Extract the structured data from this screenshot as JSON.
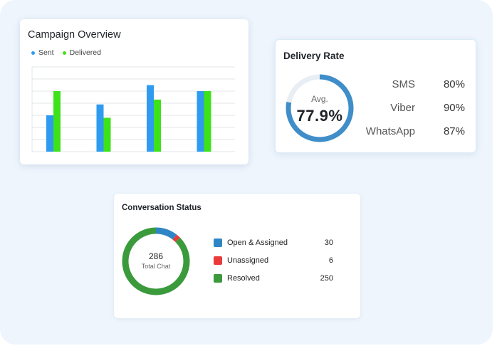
{
  "campaign": {
    "title": "Campaign Overview",
    "legend": [
      {
        "label": "Sent",
        "color": "#2f9bf0"
      },
      {
        "label": "Delivered",
        "color": "#3ee218"
      }
    ],
    "chart_data": {
      "type": "bar",
      "categories": [
        "",
        "",
        "",
        ""
      ],
      "series": [
        {
          "name": "Sent",
          "values": [
            3,
            3.9,
            5.5,
            5
          ],
          "color": "#2f9bf0"
        },
        {
          "name": "Delivered",
          "values": [
            5,
            2.8,
            4.3,
            5
          ],
          "color": "#3ee218"
        }
      ],
      "ylim": [
        0,
        7
      ],
      "gridlines": 8,
      "grid": true
    }
  },
  "delivery": {
    "title": "Delivery Rate",
    "avg_label": "Avg.",
    "avg_value": "77.9%",
    "avg_fraction": 0.779,
    "ring_color": "#3f8ec9",
    "track_color": "#e8eef3",
    "channels": [
      {
        "name": "SMS",
        "value": "80%"
      },
      {
        "name": "Viber",
        "value": "90%"
      },
      {
        "name": "WhatsApp",
        "value": "87%"
      }
    ]
  },
  "conversation": {
    "title": "Conversation Status",
    "total": "286",
    "total_label": "Total Chat",
    "statuses": [
      {
        "name": "Open & Assigned",
        "count": "30",
        "value": 30,
        "color": "#2f86c4"
      },
      {
        "name": "Unassigned",
        "count": "6",
        "value": 6,
        "color": "#ea3a3a"
      },
      {
        "name": "Resolved",
        "count": "250",
        "value": 250,
        "color": "#3a9a3c"
      }
    ]
  }
}
